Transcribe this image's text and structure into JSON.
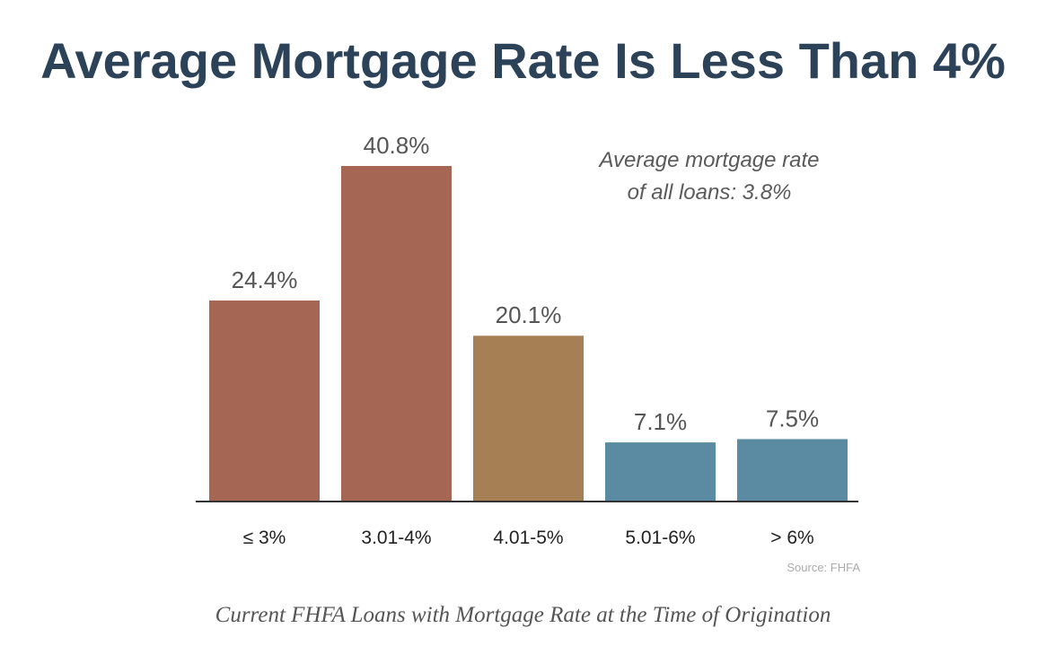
{
  "title": "Average Mortgage Rate Is Less Than 4%",
  "caption": "Current FHFA Loans with Mortgage Rate at the Time of Origination",
  "chart_data": {
    "type": "bar",
    "categories": [
      "≤ 3%",
      "3.01-4%",
      "4.01-5%",
      "5.01-6%",
      "> 6%"
    ],
    "values": [
      24.4,
      40.8,
      20.1,
      7.1,
      7.5
    ],
    "data_labels": [
      "24.4%",
      "40.8%",
      "20.1%",
      "7.1%",
      "7.5%"
    ],
    "bar_colors": [
      "#a56653",
      "#a56653",
      "#a67f55",
      "#5b8ba2",
      "#5b8ba2"
    ],
    "annotation": [
      "Average mortgage rate",
      "of all loans: 3.8%"
    ],
    "source": "Source: FHFA",
    "ylim": [
      0,
      40.8
    ],
    "grid": false,
    "legend": "none",
    "xlabel": "",
    "ylabel": ""
  }
}
